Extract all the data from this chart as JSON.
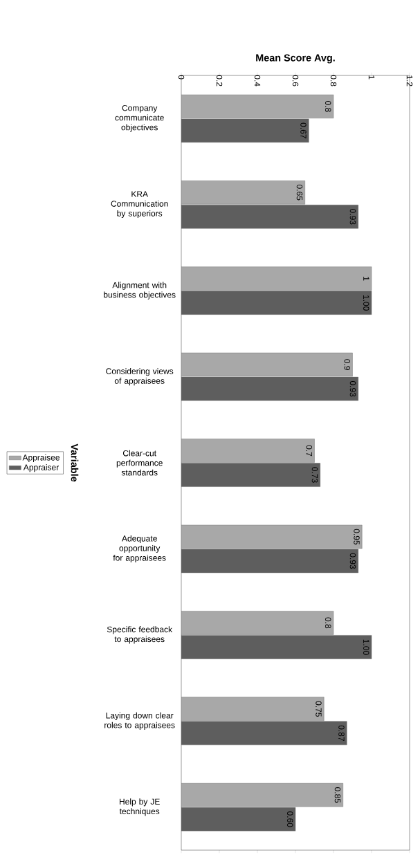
{
  "chart_data": {
    "type": "bar",
    "orientation": "horizontal",
    "title": "Mean Score Avg.",
    "ylabel": "Variable",
    "categories": [
      "Company communicate objectives",
      "KRA Communication by superiors",
      "Alignment with business objectives",
      "Considering views of appraisees",
      "Clear-cut performance standards",
      "Adequate opportunity for appraisees",
      "Specific feedback to appraisees",
      "Laying down clear roles to appraisees",
      "Help by JE techniques"
    ],
    "series": [
      {
        "name": "Appraisee",
        "color": "#a8a8a8",
        "values": [
          0.8,
          0.65,
          1,
          0.9,
          0.7,
          0.95,
          0.8,
          0.75,
          0.85
        ],
        "value_labels": [
          "0.8",
          "0.65",
          "1",
          "0.9",
          "0.7",
          "0.95",
          "0.8",
          "0.75",
          "0.85"
        ]
      },
      {
        "name": "Appraiser",
        "color": "#5e5e5e",
        "values": [
          0.67,
          0.93,
          1.0,
          0.93,
          0.73,
          0.93,
          1.0,
          0.87,
          0.6
        ],
        "value_labels": [
          "0.67",
          "0.93",
          "1.00",
          "0.93",
          "0.73",
          "0.93",
          "1.00",
          "0.87",
          "0.60"
        ]
      }
    ],
    "xlim": [
      0,
      1.2
    ],
    "xticks": [
      0,
      0.2,
      0.4,
      0.6,
      0.8,
      1,
      1.2
    ],
    "legend": "left",
    "grid": false
  }
}
